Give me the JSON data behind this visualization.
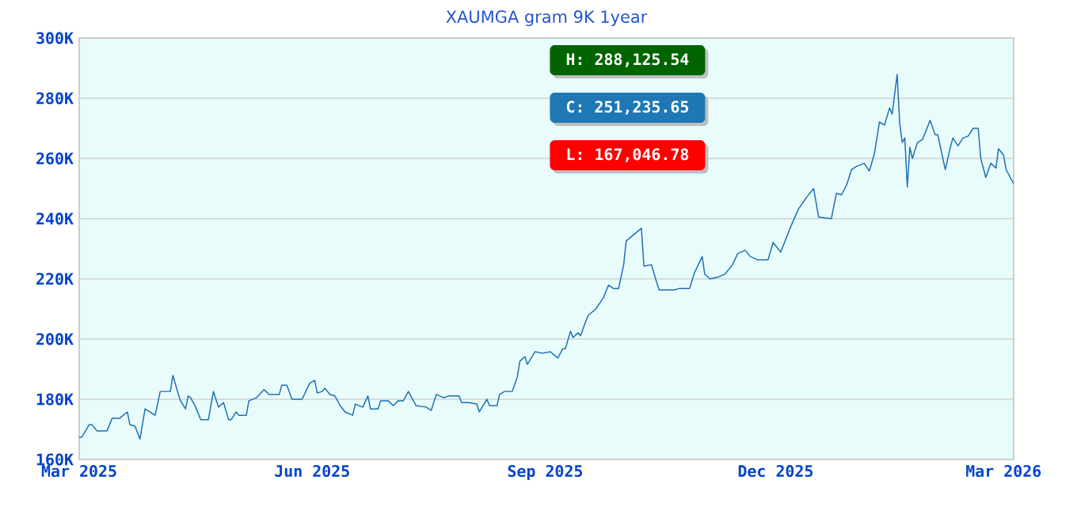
{
  "chart_data": {
    "type": "line",
    "title": "XAUMGA gram 9K 1year",
    "xlim": [
      "2025-03-01",
      "2026-03-05"
    ],
    "xticks": [
      {
        "value": "2025-03-01",
        "label": "Mar 2025"
      },
      {
        "value": "2025-06-01",
        "label": "Jun 2025"
      },
      {
        "value": "2025-09-01",
        "label": "Sep 2025"
      },
      {
        "value": "2025-12-01",
        "label": "Dec 2025"
      },
      {
        "value": "2026-03-01",
        "label": "Mar 2026"
      }
    ],
    "ylim": [
      160000,
      300000
    ],
    "yticks": [
      {
        "value": 160000,
        "label": "160K"
      },
      {
        "value": 180000,
        "label": "180K"
      },
      {
        "value": 200000,
        "label": "200K"
      },
      {
        "value": 220000,
        "label": "220K"
      },
      {
        "value": 240000,
        "label": "240K"
      },
      {
        "value": 260000,
        "label": "260K"
      },
      {
        "value": 280000,
        "label": "280K"
      },
      {
        "value": 300000,
        "label": "300K"
      }
    ],
    "grid": "y",
    "annotations": [
      "H: 288,125.54",
      "C: 251,235.65",
      "L: 167,046.78"
    ],
    "series": [
      {
        "color": "#1f6fb4",
        "x": [
          "2025-03-01",
          "2025-03-02",
          "2025-03-05",
          "2025-03-06",
          "2025-03-08",
          "2025-03-12",
          "2025-03-14",
          "2025-03-17",
          "2025-03-20",
          "2025-03-21",
          "2025-03-23",
          "2025-03-25",
          "2025-03-27",
          "2025-03-31",
          "2025-04-02",
          "2025-04-06",
          "2025-04-07",
          "2025-04-09",
          "2025-04-10",
          "2025-04-12",
          "2025-04-13",
          "2025-04-14",
          "2025-04-16",
          "2025-04-18",
          "2025-04-21",
          "2025-04-23",
          "2025-04-25",
          "2025-04-27",
          "2025-04-29",
          "2025-04-30",
          "2025-05-02",
          "2025-05-03",
          "2025-05-06",
          "2025-05-07",
          "2025-05-10",
          "2025-05-13",
          "2025-05-15",
          "2025-05-19",
          "2025-05-20",
          "2025-05-22",
          "2025-05-24",
          "2025-05-28",
          "2025-05-31",
          "2025-06-02",
          "2025-06-03",
          "2025-06-05",
          "2025-06-06",
          "2025-06-08",
          "2025-06-10",
          "2025-06-12",
          "2025-06-14",
          "2025-06-17",
          "2025-06-18",
          "2025-06-21",
          "2025-06-23",
          "2025-06-24",
          "2025-06-27",
          "2025-06-28",
          "2025-07-01",
          "2025-07-03",
          "2025-07-05",
          "2025-07-07",
          "2025-07-09",
          "2025-07-12",
          "2025-07-16",
          "2025-07-18",
          "2025-07-20",
          "2025-07-23",
          "2025-07-25",
          "2025-07-29",
          "2025-07-30",
          "2025-08-02",
          "2025-08-05",
          "2025-08-06",
          "2025-08-09",
          "2025-08-10",
          "2025-08-13",
          "2025-08-14",
          "2025-08-16",
          "2025-08-19",
          "2025-08-21",
          "2025-08-22",
          "2025-08-24",
          "2025-08-25",
          "2025-08-28",
          "2025-08-31",
          "2025-09-03",
          "2025-09-06",
          "2025-09-08",
          "2025-09-09",
          "2025-09-11",
          "2025-09-12",
          "2025-09-14",
          "2025-09-15",
          "2025-09-17",
          "2025-09-18",
          "2025-09-21",
          "2025-09-24",
          "2025-09-26",
          "2025-09-28",
          "2025-09-30",
          "2025-10-02",
          "2025-10-03",
          "2025-10-06",
          "2025-10-09",
          "2025-10-10",
          "2025-10-13",
          "2025-10-15",
          "2025-10-16",
          "2025-10-22",
          "2025-10-24",
          "2025-10-28",
          "2025-10-30",
          "2025-11-02",
          "2025-11-03",
          "2025-11-05",
          "2025-11-08",
          "2025-11-11",
          "2025-11-14",
          "2025-11-16",
          "2025-11-19",
          "2025-11-21",
          "2025-11-24",
          "2025-11-28",
          "2025-11-30",
          "2025-12-03",
          "2025-12-07",
          "2025-12-10",
          "2025-12-13",
          "2025-12-16",
          "2025-12-18",
          "2025-12-23",
          "2025-12-25",
          "2025-12-27",
          "2025-12-29",
          "2025-12-31",
          "2026-01-02",
          "2026-01-05",
          "2026-01-07",
          "2026-01-09",
          "2026-01-11",
          "2026-01-13",
          "2026-01-15",
          "2026-01-16",
          "2026-01-18",
          "2026-01-19",
          "2026-01-20",
          "2026-01-21",
          "2026-01-22",
          "2026-01-23",
          "2026-01-24",
          "2026-01-26",
          "2026-01-28",
          "2026-01-30",
          "2026-01-31",
          "2026-02-02",
          "2026-02-03",
          "2026-02-06",
          "2026-02-08",
          "2026-02-09",
          "2026-02-11",
          "2026-02-13",
          "2026-02-15",
          "2026-02-17",
          "2026-02-19",
          "2026-02-20",
          "2026-02-22",
          "2026-02-24",
          "2026-02-26",
          "2026-02-27",
          "2026-03-01",
          "2026-03-02",
          "2026-03-05"
        ],
        "values": [
          167400,
          167400,
          171600,
          171600,
          169500,
          169500,
          173700,
          173700,
          175800,
          171600,
          171100,
          166800,
          176800,
          174700,
          182600,
          182600,
          187900,
          182100,
          179500,
          176800,
          181100,
          180500,
          177400,
          173200,
          173200,
          182600,
          177400,
          178900,
          173200,
          173200,
          175800,
          174700,
          174700,
          179500,
          180500,
          183200,
          181600,
          181600,
          184700,
          184700,
          180000,
          180000,
          185300,
          186300,
          182100,
          182600,
          183700,
          181600,
          181100,
          177900,
          175800,
          174700,
          178400,
          177400,
          181100,
          176800,
          176800,
          179500,
          179500,
          177900,
          179500,
          179500,
          182600,
          177900,
          177400,
          176300,
          181600,
          180500,
          181100,
          181100,
          178900,
          178900,
          178400,
          175800,
          180000,
          177900,
          177900,
          181600,
          182600,
          182600,
          187400,
          192600,
          194200,
          191600,
          195800,
          195300,
          195800,
          193700,
          196800,
          196800,
          202600,
          200500,
          202100,
          201100,
          205800,
          207900,
          210000,
          213700,
          217900,
          216800,
          216800,
          224700,
          232600,
          234700,
          236800,
          224200,
          224700,
          218900,
          216300,
          216300,
          216800,
          216800,
          222100,
          227400,
          221600,
          220000,
          220500,
          221600,
          224700,
          228400,
          229500,
          227400,
          226300,
          226300,
          232100,
          228900,
          237400,
          243200,
          246800,
          250000,
          240500,
          240000,
          248400,
          247900,
          251100,
          256300,
          257400,
          258400,
          255800,
          261600,
          272100,
          271100,
          276800,
          274700,
          287900,
          271600,
          265300,
          266800,
          250500,
          263700,
          260000,
          265300,
          266300,
          270500,
          272600,
          267900,
          267900,
          256300,
          263700,
          266800,
          264200,
          266800,
          267400,
          270000,
          270000,
          260000,
          253700,
          258400,
          256800,
          263200,
          261100,
          256300,
          251600
        ]
      }
    ]
  }
}
